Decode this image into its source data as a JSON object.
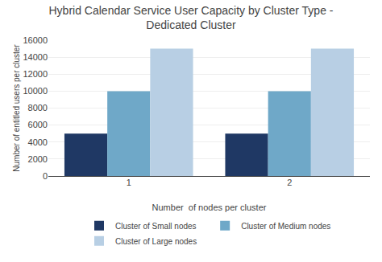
{
  "chart_data": {
    "type": "bar",
    "title": "Hybrid Calendar Service User Capacity by Cluster Type -\nDedicated Cluster",
    "xlabel": "Number  of nodes per cluster",
    "ylabel": "Number of entitled users per cluster",
    "categories": [
      1,
      2
    ],
    "series": [
      {
        "name": "Cluster of Small nodes",
        "color": "#1f3864",
        "values": [
          5000,
          5000
        ]
      },
      {
        "name": "Cluster of Medium nodes",
        "color": "#6fa8c8",
        "values": [
          10000,
          10000
        ]
      },
      {
        "name": "Cluster of Large nodes",
        "color": "#b8cfe4",
        "values": [
          15000,
          15000
        ]
      }
    ],
    "ylim": [
      0,
      16000
    ],
    "yticks": [
      0,
      2000,
      4000,
      6000,
      8000,
      10000,
      12000,
      14000,
      16000
    ],
    "grid": true,
    "legend": "bottom"
  }
}
